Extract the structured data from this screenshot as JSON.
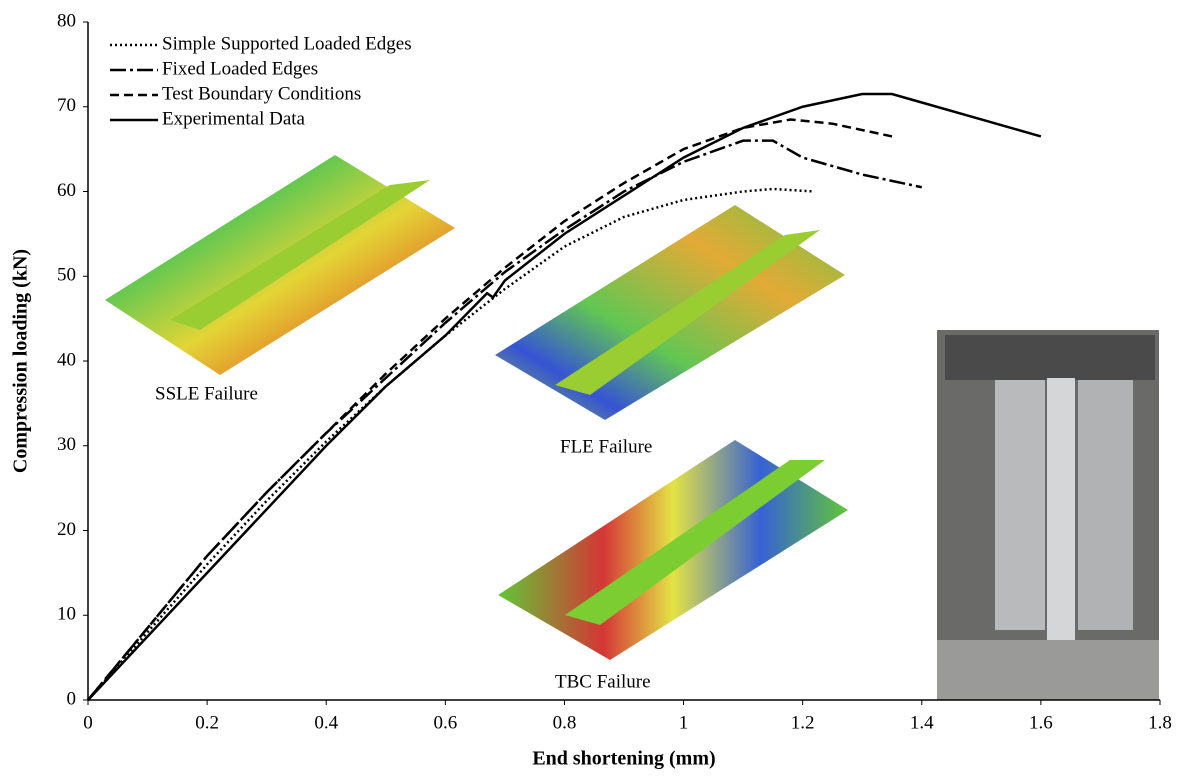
{
  "chart_data": {
    "type": "line",
    "x_label": "End shortening (mm)",
    "y_label": "Compression loading (kN)",
    "xlim": [
      0,
      1.8
    ],
    "xticks": [
      0,
      0.2,
      0.4,
      0.6,
      0.8,
      1,
      1.2,
      1.4,
      1.6,
      1.8
    ],
    "ylim": [
      0,
      80
    ],
    "yticks": [
      0,
      10,
      20,
      30,
      40,
      50,
      60,
      70,
      80
    ],
    "grid": false,
    "legend": "upper left",
    "annotations": [
      "SSLE Failure",
      "FLE Failure",
      "TBC Failure"
    ],
    "series": [
      {
        "name": "Simple Supported Loaded Edges",
        "color": "#000000",
        "dash": "dotted",
        "x": [
          0,
          0.1,
          0.2,
          0.3,
          0.4,
          0.5,
          0.6,
          0.7,
          0.8,
          0.9,
          1.0,
          1.1,
          1.15,
          1.22
        ],
        "values": [
          0,
          8,
          16,
          23.5,
          30.5,
          37,
          43,
          48.5,
          53.5,
          57,
          59,
          60,
          60.3,
          60
        ]
      },
      {
        "name": "Fixed Loaded Edges",
        "color": "#000000",
        "dash": "dashdot",
        "x": [
          0,
          0.1,
          0.2,
          0.3,
          0.4,
          0.5,
          0.6,
          0.7,
          0.8,
          0.9,
          1.0,
          1.1,
          1.15,
          1.2,
          1.3,
          1.4
        ],
        "values": [
          0,
          8.5,
          17,
          24.5,
          31.5,
          38,
          44.5,
          50.5,
          55.5,
          60,
          63.5,
          66,
          66,
          64,
          62,
          60.5
        ]
      },
      {
        "name": "Test Boundary Conditions",
        "color": "#000000",
        "dash": "dashed",
        "x": [
          0,
          0.1,
          0.2,
          0.3,
          0.4,
          0.5,
          0.6,
          0.7,
          0.8,
          0.9,
          1.0,
          1.1,
          1.18,
          1.25,
          1.35
        ],
        "values": [
          0,
          8.5,
          17,
          24.5,
          31.5,
          38.5,
          45,
          51,
          56.5,
          61,
          65,
          67.5,
          68.5,
          68,
          66.5
        ]
      },
      {
        "name": "Experimental Data",
        "color": "#000000",
        "dash": "solid",
        "x": [
          0,
          0.1,
          0.2,
          0.3,
          0.4,
          0.5,
          0.6,
          0.67,
          0.68,
          0.7,
          0.8,
          0.9,
          1.0,
          1.1,
          1.2,
          1.3,
          1.35,
          1.4,
          1.5,
          1.6
        ],
        "values": [
          0,
          7.5,
          15,
          22.5,
          30,
          37,
          43,
          48,
          47.5,
          49.5,
          55,
          59.5,
          64,
          67.5,
          70,
          71.5,
          71.5,
          70.5,
          68.5,
          66.5
        ]
      }
    ]
  }
}
